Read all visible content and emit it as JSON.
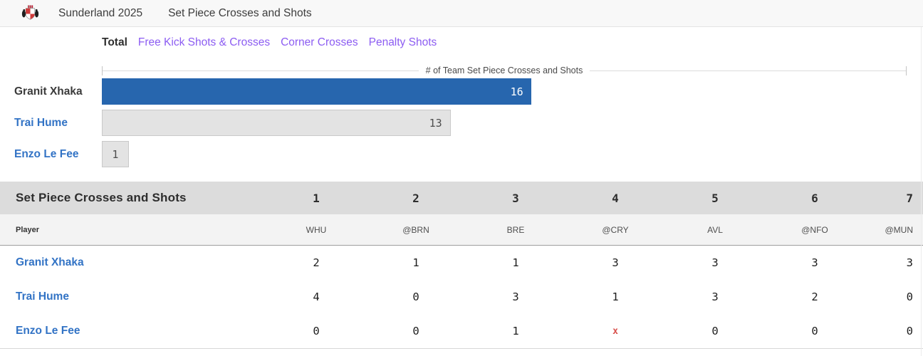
{
  "header": {
    "team_title": "Sunderland 2025",
    "page_title": "Set Piece Crosses and Shots"
  },
  "tabs": [
    {
      "label": "Total",
      "active": true
    },
    {
      "label": "Free Kick Shots & Crosses",
      "active": false
    },
    {
      "label": "Corner Crosses",
      "active": false
    },
    {
      "label": "Penalty Shots",
      "active": false
    }
  ],
  "chart_data": {
    "type": "bar",
    "orientation": "horizontal",
    "axis_title": "# of Team Set Piece Crosses and Shots",
    "categories": [
      "Granit Xhaka",
      "Trai Hume",
      "Enzo Le Fee"
    ],
    "values": [
      16,
      13,
      1
    ],
    "xlim": [
      0,
      30
    ],
    "highlight_index": 0,
    "legend": "none",
    "grid": "off"
  },
  "table": {
    "title": "Set Piece Crosses and Shots",
    "game_numbers": [
      "1",
      "2",
      "3",
      "4",
      "5",
      "6",
      "7"
    ],
    "player_column_label": "Player",
    "opponents": [
      "WHU",
      "@BRN",
      "BRE",
      "@CRY",
      "AVL",
      "@NFO",
      "@MUN"
    ],
    "rows": [
      {
        "player": "Granit Xhaka",
        "values": [
          "2",
          "1",
          "1",
          "3",
          "3",
          "3",
          "3"
        ]
      },
      {
        "player": "Trai Hume",
        "values": [
          "4",
          "0",
          "3",
          "1",
          "3",
          "2",
          "0"
        ]
      },
      {
        "player": "Enzo Le Fee",
        "values": [
          "0",
          "0",
          "1",
          "x",
          "0",
          "0",
          "0"
        ]
      }
    ],
    "dnp_marker": "x"
  },
  "colors": {
    "accent_purple": "#8c5cf2",
    "link_blue": "#3273c5",
    "bar_blue": "#2766ae",
    "bar_gray": "#e3e3e3",
    "dnp_red": "#d9534f"
  }
}
